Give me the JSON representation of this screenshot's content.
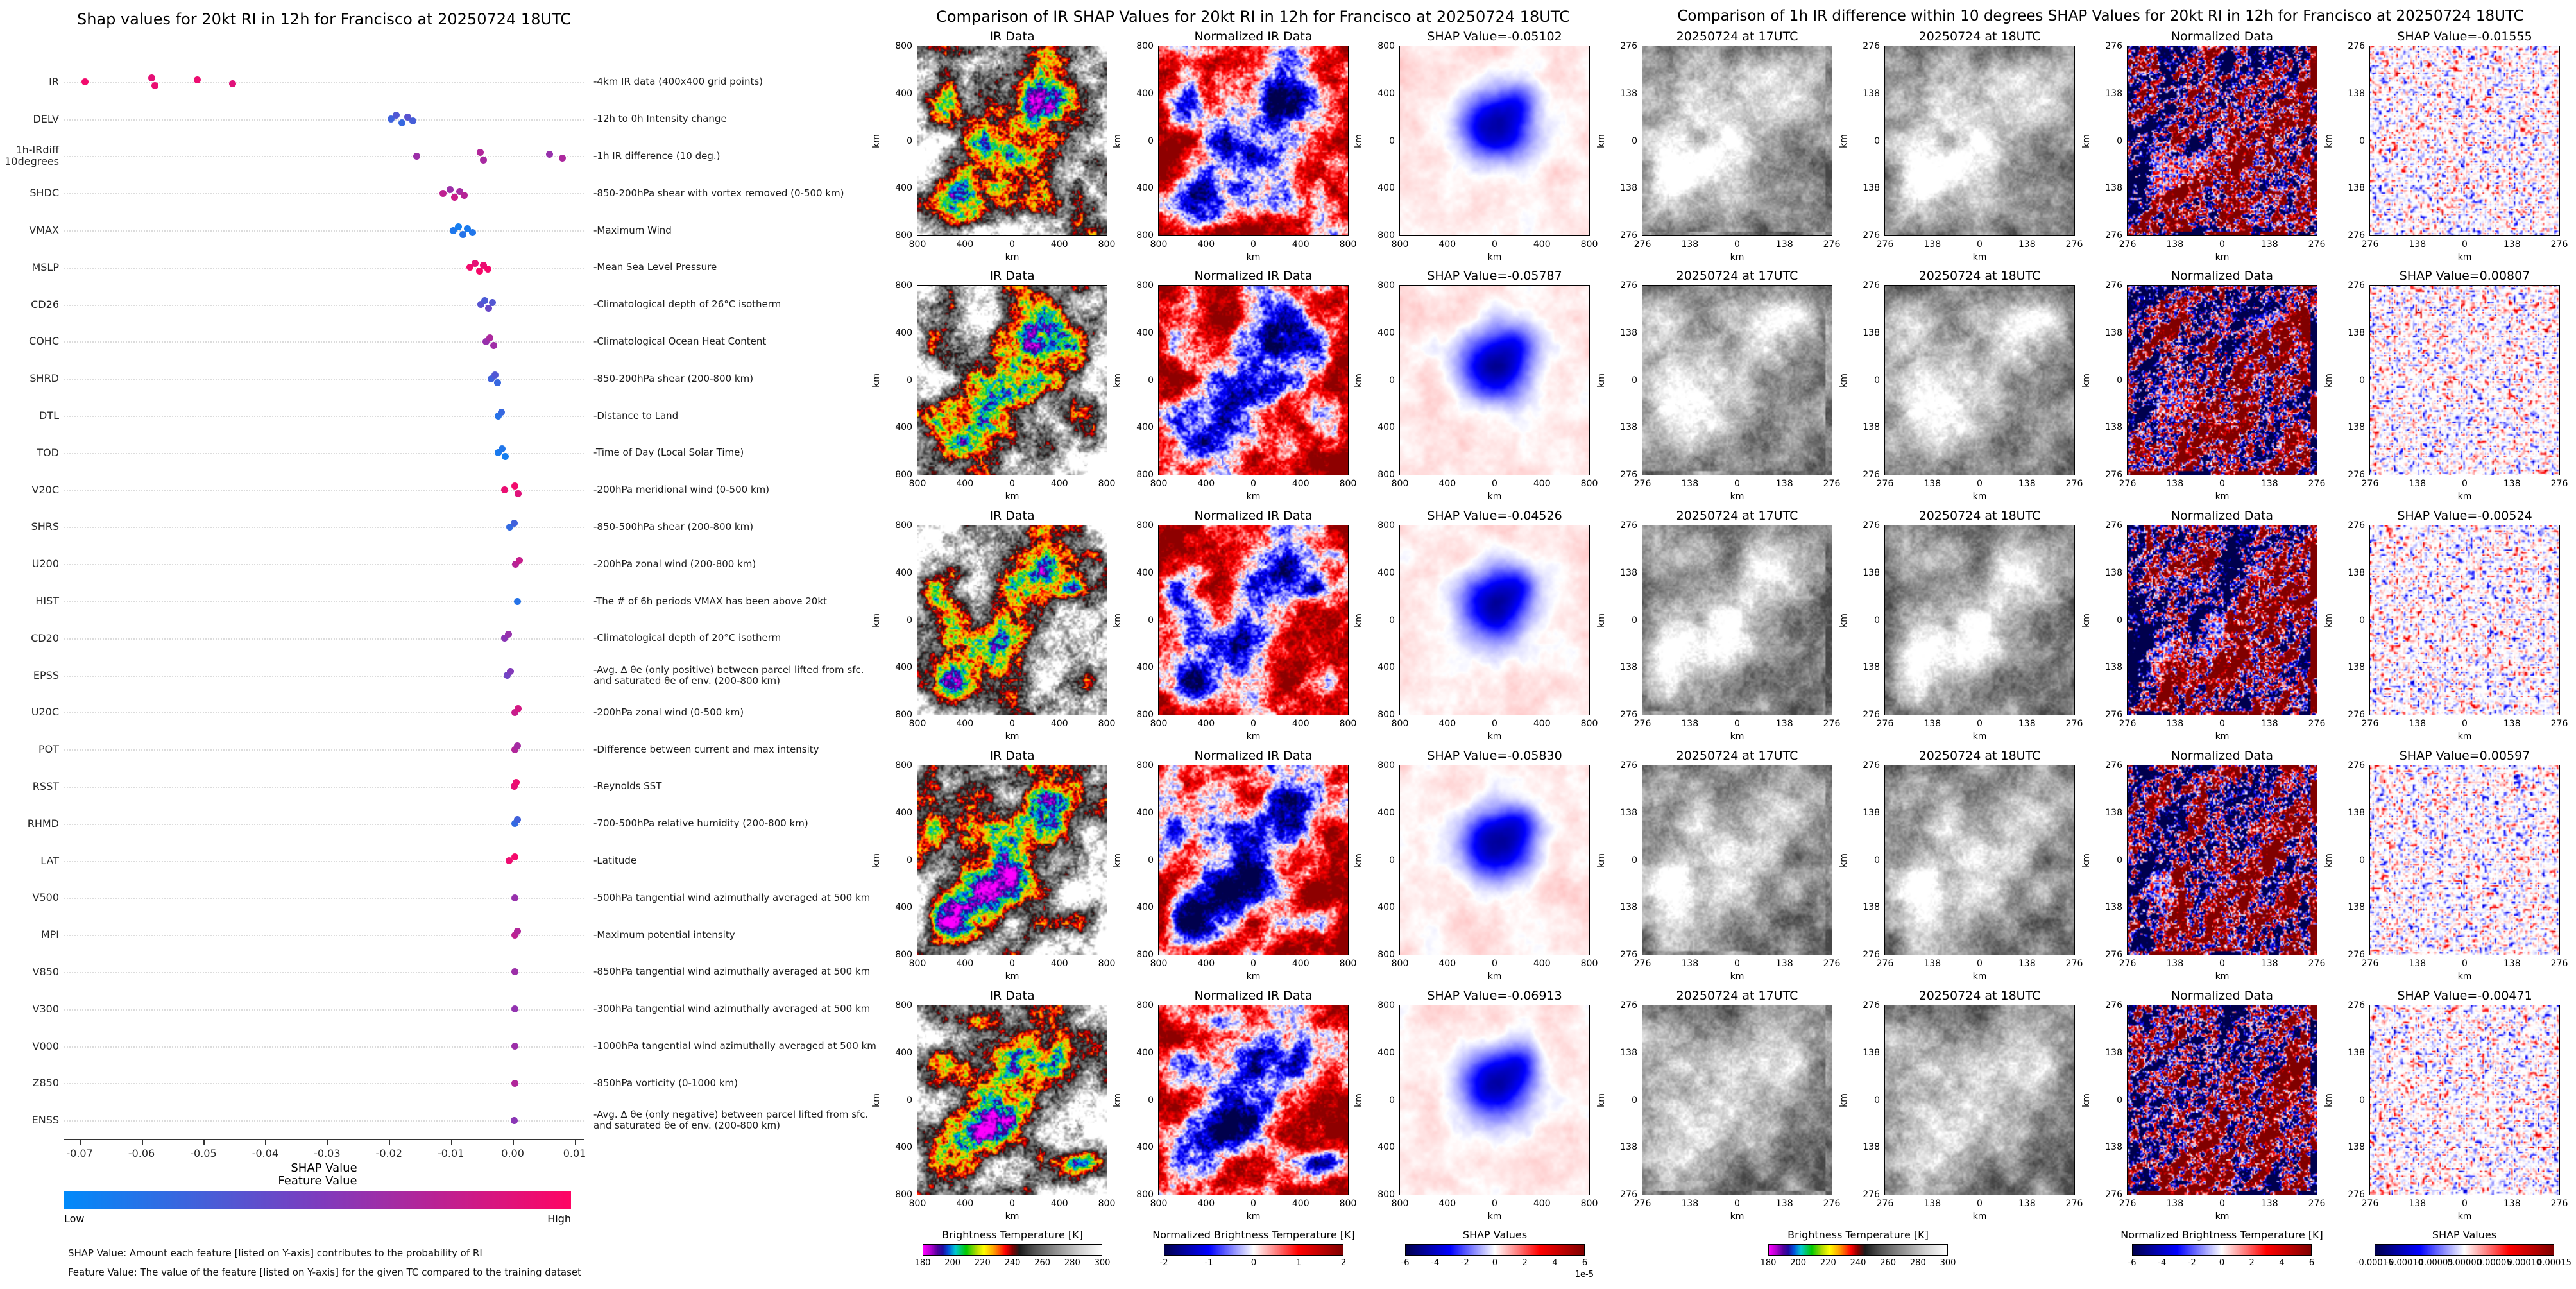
{
  "chart_data": [
    {
      "type": "scatter",
      "variant": "shap-beeswarm",
      "title": "Shap values for 20kt RI in 12h for Francisco at 20250724 18UTC",
      "xlabel": "SHAP Value",
      "xlim": [
        -0.0725,
        0.0115
      ],
      "x_ticks": [
        "-0.07",
        "-0.06",
        "-0.05",
        "-0.04",
        "-0.03",
        "-0.02",
        "-0.01",
        "0.00",
        "0.01"
      ],
      "grid": true,
      "legend_position": "bottom-colorbar",
      "colormap": {
        "low": "#008afa",
        "mid": "#7d3cbe",
        "high": "#ff0564",
        "label": "Feature Value",
        "low_text": "Low",
        "high_text": "High"
      },
      "footnotes": [
        "SHAP Value: Amount each feature [listed on Y-axis] contributes to the probability of RI",
        "Feature Value: The value of the feature [listed on Y-axis] for the given TC compared to the training dataset"
      ],
      "features": [
        {
          "name": "IR",
          "desc": "-4km IR data (400x400 grid points)",
          "points": [
            [
              -0.06913,
              0.95
            ],
            [
              -0.0583,
              0.9
            ],
            [
              -0.05787,
              0.92
            ],
            [
              -0.05102,
              0.93
            ],
            [
              -0.04526,
              0.88
            ]
          ]
        },
        {
          "name": "DELV",
          "desc": "-12h to 0h Intensity change",
          "points": [
            [
              -0.0197,
              0.25
            ],
            [
              -0.0188,
              0.32
            ],
            [
              -0.0179,
              0.22
            ],
            [
              -0.017,
              0.35
            ],
            [
              -0.0161,
              0.28
            ]
          ]
        },
        {
          "name": "1h-IRdiff\n10degrees",
          "desc": "-1h IR difference (10 deg.)",
          "points": [
            [
              -0.01555,
              0.62
            ],
            [
              -0.00524,
              0.7
            ],
            [
              -0.00471,
              0.66
            ],
            [
              0.00597,
              0.6
            ],
            [
              0.00807,
              0.68
            ]
          ]
        },
        {
          "name": "SHDC",
          "desc": "-850-200hPa shear with vortex removed (0-500 km)",
          "points": [
            [
              -0.0113,
              0.75
            ],
            [
              -0.0101,
              0.62
            ],
            [
              -0.0094,
              0.8
            ],
            [
              -0.0086,
              0.66
            ],
            [
              -0.0078,
              0.72
            ]
          ]
        },
        {
          "name": "VMAX",
          "desc": "-Maximum Wind",
          "points": [
            [
              -0.0096,
              0.12
            ],
            [
              -0.0088,
              0.08
            ],
            [
              -0.0081,
              0.15
            ],
            [
              -0.0073,
              0.1
            ],
            [
              -0.0065,
              0.13
            ]
          ]
        },
        {
          "name": "MSLP",
          "desc": "-Mean Sea Level Pressure",
          "points": [
            [
              -0.0069,
              0.95
            ],
            [
              -0.0061,
              0.9
            ],
            [
              -0.0054,
              0.97
            ],
            [
              -0.0047,
              0.92
            ],
            [
              -0.004,
              0.96
            ]
          ]
        },
        {
          "name": "CD26",
          "desc": "-Climatological depth of 26°C isotherm",
          "points": [
            [
              -0.0051,
              0.35
            ],
            [
              -0.0045,
              0.3
            ],
            [
              -0.0039,
              0.42
            ],
            [
              -0.0033,
              0.33
            ]
          ]
        },
        {
          "name": "COHC",
          "desc": "-Climatological Ocean Heat Content",
          "points": [
            [
              -0.0043,
              0.6
            ],
            [
              -0.0037,
              0.68
            ],
            [
              -0.0031,
              0.63
            ]
          ]
        },
        {
          "name": "SHRD",
          "desc": "-850-200hPa shear (200-800 km)",
          "points": [
            [
              -0.0035,
              0.25
            ],
            [
              -0.0029,
              0.32
            ],
            [
              -0.0024,
              0.22
            ]
          ]
        },
        {
          "name": "DTL",
          "desc": "-Distance to Land",
          "points": [
            [
              -0.0023,
              0.15
            ],
            [
              -0.0018,
              0.22
            ]
          ]
        },
        {
          "name": "TOD",
          "desc": "-Time of Day (Local Solar Time)",
          "points": [
            [
              -0.0023,
              0.1
            ],
            [
              -0.0017,
              0.13
            ],
            [
              -0.0012,
              0.08
            ]
          ]
        },
        {
          "name": "V20C",
          "desc": "-200hPa meridional wind (0-500 km)",
          "points": [
            [
              -0.0013,
              0.92
            ],
            [
              0.0003,
              0.95
            ],
            [
              0.0009,
              0.88
            ]
          ]
        },
        {
          "name": "SHRS",
          "desc": "-850-500hPa shear (200-800 km)",
          "points": [
            [
              -0.0005,
              0.2
            ],
            [
              0.0002,
              0.26
            ]
          ]
        },
        {
          "name": "U200",
          "desc": "-200hPa zonal wind (200-800 km)",
          "points": [
            [
              0.0005,
              0.72
            ],
            [
              0.0011,
              0.78
            ]
          ]
        },
        {
          "name": "HIST",
          "desc": "-The # of 6h periods VMAX has been above 20kt",
          "points": [
            [
              0.0008,
              0.15
            ]
          ]
        },
        {
          "name": "CD20",
          "desc": "-Climatological depth of 20°C isotherm",
          "points": [
            [
              -0.0013,
              0.55
            ],
            [
              -0.0007,
              0.6
            ]
          ]
        },
        {
          "name": "EPSS",
          "desc": "-Avg. Δ θe (only positive) between parcel lifted from sfc. and saturated θe of env. (200-800 km)",
          "points": [
            [
              -0.0009,
              0.45
            ],
            [
              -0.0004,
              0.52
            ]
          ]
        },
        {
          "name": "U20C",
          "desc": "-200hPa zonal wind (0-500 km)",
          "points": [
            [
              0.0004,
              0.78
            ],
            [
              0.0009,
              0.83
            ]
          ]
        },
        {
          "name": "POT",
          "desc": "-Difference between current and max intensity",
          "points": [
            [
              0.0003,
              0.7
            ],
            [
              0.0008,
              0.65
            ]
          ]
        },
        {
          "name": "RSST",
          "desc": "-Reynolds SST",
          "points": [
            [
              0.0002,
              0.9
            ],
            [
              0.0006,
              0.93
            ]
          ]
        },
        {
          "name": "RHMD",
          "desc": "-700-500hPa relative humidity (200-800 km)",
          "points": [
            [
              0.0004,
              0.2
            ],
            [
              0.0008,
              0.26
            ]
          ]
        },
        {
          "name": "LAT",
          "desc": "-Latitude",
          "points": [
            [
              -0.0006,
              0.93
            ],
            [
              0.0004,
              0.96
            ]
          ]
        },
        {
          "name": "V500",
          "desc": "-500hPa tangential wind azimuthally averaged at 500 km",
          "points": [
            [
              0.0004,
              0.6
            ]
          ]
        },
        {
          "name": "MPI",
          "desc": "-Maximum potential intensity",
          "points": [
            [
              0.0004,
              0.75
            ],
            [
              0.0008,
              0.7
            ]
          ]
        },
        {
          "name": "V850",
          "desc": "-850hPa tangential wind azimuthally averaged at 500 km",
          "points": [
            [
              0.0004,
              0.62
            ]
          ]
        },
        {
          "name": "V300",
          "desc": "-300hPa tangential wind azimuthally averaged at 500 km",
          "points": [
            [
              0.0003,
              0.58
            ]
          ]
        },
        {
          "name": "V000",
          "desc": "-1000hPa tangential wind azimuthally averaged at 500 km",
          "points": [
            [
              0.0003,
              0.62
            ]
          ]
        },
        {
          "name": "Z850",
          "desc": "-850hPa vorticity (0-1000 km)",
          "points": [
            [
              0.0004,
              0.7
            ]
          ]
        },
        {
          "name": "ENSS",
          "desc": "-Avg. Δ θe (only negative) between parcel lifted from sfc. and saturated θe of env. (200-800 km)",
          "points": [
            [
              0.0002,
              0.55
            ]
          ]
        }
      ]
    },
    {
      "type": "heatmap",
      "variant": "image-grid",
      "title": "Comparison of IR SHAP Values for 20kt RI in 12h for Francisco at 20250724 18UTC",
      "col_titles": [
        "IR Data",
        "Normalized IR Data",
        null
      ],
      "col_types": [
        "ir",
        "norm_ir",
        "shap_blob"
      ],
      "axis_label": "km",
      "ticks": [
        "800",
        "400",
        "0",
        "400",
        "800"
      ],
      "rows": [
        {
          "shap_label": "SHAP Value=-0.05102",
          "shap_value": -0.05102
        },
        {
          "shap_label": "SHAP Value=-0.05787",
          "shap_value": -0.05787
        },
        {
          "shap_label": "SHAP Value=-0.04526",
          "shap_value": -0.04526
        },
        {
          "shap_label": "SHAP Value=-0.05830",
          "shap_value": -0.0583
        },
        {
          "shap_label": "SHAP Value=-0.06913",
          "shap_value": -0.06913
        }
      ],
      "colorbars": [
        {
          "label": "Brightness Temperature [K]",
          "cmap": "ir",
          "ticks": [
            "180",
            "200",
            "220",
            "240",
            "260",
            "280",
            "300"
          ]
        },
        {
          "label": "Normalized Brightness Temperature [K]",
          "cmap": "seismic",
          "ticks": [
            "-2",
            "-1",
            "0",
            "1",
            "2"
          ]
        },
        {
          "label": "SHAP Values",
          "cmap": "seismic",
          "ticks": [
            "-6",
            "-4",
            "-2",
            "0",
            "2",
            "4",
            "6"
          ],
          "offset": "1e-5"
        }
      ]
    },
    {
      "type": "heatmap",
      "variant": "image-grid",
      "title": "Comparison of 1h IR difference within 10 degrees SHAP Values for 20kt RI in 12h for Francisco at 20250724 18UTC",
      "col_titles": [
        "20250724 at 17UTC",
        "20250724 at 18UTC",
        "Normalized Data",
        null
      ],
      "col_types": [
        "gray_prev",
        "gray_now",
        "norm_diff",
        "shap_speck"
      ],
      "axis_label": "km",
      "ticks": [
        "276",
        "138",
        "0",
        "138",
        "276"
      ],
      "rows": [
        {
          "shap_label": "SHAP Value=-0.01555",
          "shap_value": -0.01555
        },
        {
          "shap_label": "SHAP Value=0.00807",
          "shap_value": 0.00807
        },
        {
          "shap_label": "SHAP Value=-0.00524",
          "shap_value": -0.00524
        },
        {
          "shap_label": "SHAP Value=0.00597",
          "shap_value": 0.00597
        },
        {
          "shap_label": "SHAP Value=-0.00471",
          "shap_value": -0.00471
        }
      ],
      "colorbars": [
        {
          "label": "Brightness Temperature [K]",
          "cmap": "ir",
          "ticks": [
            "180",
            "200",
            "220",
            "240",
            "260",
            "280",
            "300"
          ]
        },
        {
          "label": "Normalized Brightness Temperature [K]",
          "cmap": "seismic",
          "ticks": [
            "-6",
            "-4",
            "-2",
            "0",
            "2",
            "4",
            "6"
          ]
        },
        {
          "label": "SHAP Values",
          "cmap": "seismic",
          "ticks": [
            "-0.00015",
            "-0.00010",
            "-0.00005",
            "0.00000",
            "0.00005",
            "0.00010",
            "0.00015"
          ]
        }
      ]
    }
  ],
  "colormaps": {
    "ir": [
      "#ff00ff 0%",
      "#b400d2 4%",
      "#50009b 8%",
      "#1e0aa0 11%",
      "#0050dc 14%",
      "#00c8d2 18%",
      "#00c800 24%",
      "#b4dc00 30%",
      "#ffff00 34%",
      "#ff9600 40%",
      "#ff0000 46%",
      "#820000 50%",
      "#1a1a1a 54%",
      "#505050 62%",
      "#8c8c8c 74%",
      "#d2d2d2 88%",
      "#ffffff 100%"
    ],
    "seismic": [
      "#00004d 0%",
      "#0000ff 25%",
      "#ffffff 50%",
      "#ff0000 75%",
      "#800000 100%"
    ]
  }
}
